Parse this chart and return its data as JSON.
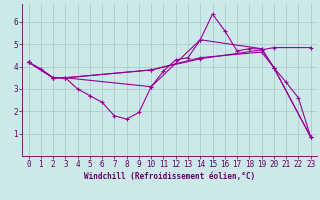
{
  "xlabel": "Windchill (Refroidissement éolien,°C)",
  "background_color": "#cce8e8",
  "grid_color": "#aacccc",
  "line_color": "#990099",
  "xlim": [
    -0.5,
    23.5
  ],
  "ylim": [
    0,
    6.8
  ],
  "xticks": [
    0,
    1,
    2,
    3,
    4,
    5,
    6,
    7,
    8,
    9,
    10,
    11,
    12,
    13,
    14,
    15,
    16,
    17,
    18,
    19,
    20,
    21,
    22,
    23
  ],
  "yticks": [
    1,
    2,
    3,
    4,
    5,
    6
  ],
  "series": [
    {
      "x": [
        0,
        1,
        2,
        3,
        4,
        5,
        6,
        7,
        8,
        9,
        10,
        11,
        12,
        13,
        14,
        15,
        16,
        17,
        18,
        19,
        20,
        21,
        22,
        23
      ],
      "y": [
        4.2,
        3.9,
        3.5,
        3.5,
        3.0,
        2.7,
        2.4,
        1.8,
        1.65,
        1.95,
        3.1,
        3.8,
        4.3,
        4.4,
        5.2,
        6.35,
        5.6,
        4.7,
        4.8,
        4.8,
        3.95,
        3.3,
        2.6,
        0.85
      ]
    },
    {
      "x": [
        0,
        2,
        3,
        10,
        14,
        19,
        20,
        23
      ],
      "y": [
        4.2,
        3.5,
        3.5,
        3.1,
        5.2,
        4.8,
        3.95,
        0.85
      ]
    },
    {
      "x": [
        0,
        2,
        3,
        10,
        14,
        19,
        20,
        23
      ],
      "y": [
        4.2,
        3.5,
        3.5,
        3.85,
        4.4,
        4.65,
        3.95,
        0.85
      ]
    },
    {
      "x": [
        0,
        2,
        3,
        10,
        14,
        19,
        20,
        23
      ],
      "y": [
        4.2,
        3.5,
        3.5,
        3.85,
        4.35,
        4.75,
        4.85,
        4.85
      ]
    }
  ],
  "tick_color": "#660066",
  "label_fontsize": 5.5,
  "xlabel_fontsize": 5.5
}
